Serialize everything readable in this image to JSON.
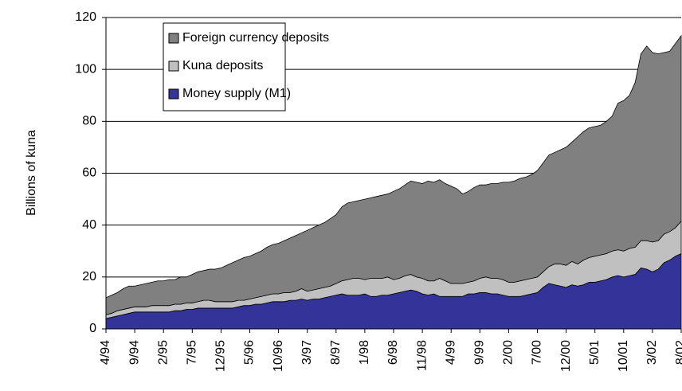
{
  "chart_data": {
    "type": "stacked-area",
    "y_label": "Billions of kuna",
    "categories": [
      "4/94",
      null,
      null,
      null,
      null,
      "9/94",
      null,
      null,
      null,
      null,
      "2/95",
      null,
      null,
      null,
      null,
      "7/95",
      null,
      null,
      null,
      null,
      "12/95",
      null,
      null,
      null,
      null,
      "5/96",
      null,
      null,
      null,
      null,
      "10/96",
      null,
      null,
      null,
      null,
      "3/97",
      null,
      null,
      null,
      null,
      "8/97",
      null,
      null,
      null,
      null,
      "1/98",
      null,
      null,
      null,
      null,
      "6/98",
      null,
      null,
      null,
      null,
      "11/98",
      null,
      null,
      null,
      null,
      "4/99",
      null,
      null,
      null,
      null,
      "9/99",
      null,
      null,
      null,
      null,
      "2/00",
      null,
      null,
      null,
      null,
      "7/00",
      null,
      null,
      null,
      null,
      "12/00",
      null,
      null,
      null,
      null,
      "5/01",
      null,
      null,
      null,
      null,
      "10/01",
      null,
      null,
      null,
      null,
      "3/02",
      null,
      null,
      null,
      null,
      "8/02"
    ],
    "series": [
      {
        "name": "Money supply (M1)",
        "color": "#333399",
        "values": [
          4,
          4.5,
          5,
          5.5,
          6,
          6.5,
          6.5,
          6.5,
          6.5,
          6.5,
          6.5,
          6.5,
          7,
          7,
          7.5,
          7.5,
          8,
          8,
          8,
          8,
          8,
          8,
          8,
          8.5,
          9,
          9,
          9.5,
          9.5,
          10,
          10.5,
          10.5,
          10.5,
          11,
          11,
          11.5,
          11,
          11.5,
          11.5,
          12,
          12.5,
          13,
          13.5,
          13,
          13,
          13,
          13.5,
          12.5,
          12.5,
          13,
          13,
          13.5,
          14,
          14.5,
          15,
          14.5,
          13.5,
          13,
          13.5,
          12.5,
          12.5,
          12.5,
          12.5,
          12.5,
          13.5,
          13.5,
          14,
          14,
          13.5,
          13.5,
          13,
          12.5,
          12.5,
          12.5,
          13,
          13.5,
          14,
          16,
          17.5,
          17,
          16.5,
          16,
          17,
          16.5,
          17,
          18,
          18,
          18.5,
          19,
          20,
          20.5,
          20,
          20.5,
          21,
          23.5,
          23,
          22,
          23,
          25.5,
          26.5,
          28,
          29
        ]
      },
      {
        "name": "Kuna deposits",
        "color": "#c0c0c0",
        "values": [
          1.5,
          1.5,
          2,
          2,
          2,
          2,
          2,
          2,
          2.5,
          2.5,
          2.5,
          2.5,
          2.5,
          2.5,
          2.5,
          2.5,
          2.5,
          3,
          3,
          2.5,
          2.5,
          2.5,
          2.5,
          2.5,
          2,
          2.5,
          2.5,
          3,
          3,
          3,
          3,
          3.5,
          3,
          3.5,
          4,
          3.5,
          3.5,
          4,
          4,
          4,
          4.5,
          5,
          6,
          6.5,
          6.5,
          5.5,
          7,
          7,
          6.5,
          7,
          5.5,
          5.5,
          6,
          6,
          5.5,
          6,
          5.5,
          5,
          7,
          6,
          5,
          5,
          5,
          4.5,
          5,
          5.5,
          6,
          6,
          6,
          6,
          5.5,
          5.5,
          6,
          6,
          6,
          6,
          6,
          6.5,
          8,
          8.5,
          8.5,
          9,
          8.5,
          9.5,
          9.5,
          10,
          10,
          10,
          10,
          10,
          10,
          10.5,
          10.5,
          10.5,
          11,
          11.5,
          11,
          11,
          11,
          11,
          12.5
        ]
      },
      {
        "name": "Foreign currency deposits",
        "color": "#808080",
        "values": [
          6.5,
          7,
          7,
          8,
          8.5,
          8,
          8.5,
          9,
          9,
          9.5,
          9.5,
          10,
          9.5,
          10.5,
          10,
          11,
          11.5,
          11.5,
          12,
          12.5,
          13,
          14,
          15,
          15.5,
          16.5,
          16.5,
          17,
          17.5,
          18.5,
          19,
          19.5,
          20,
          21,
          21.5,
          21.5,
          23.5,
          24,
          24.5,
          25,
          26,
          26.5,
          28.5,
          29.5,
          29.5,
          30,
          31,
          31,
          31.5,
          32,
          32,
          34,
          34.5,
          35,
          36,
          36.5,
          36.5,
          38.5,
          38,
          38,
          37.5,
          37.5,
          36.5,
          34.5,
          35,
          36,
          36,
          35.5,
          36.5,
          36.5,
          37.5,
          38.5,
          39,
          39.5,
          39.5,
          40,
          41,
          42,
          43,
          43,
          44,
          45.5,
          46,
          49,
          49.5,
          50,
          50,
          50,
          51,
          52,
          56.5,
          58,
          59,
          63.5,
          72,
          75,
          73,
          72,
          70,
          69.5,
          71,
          71.5
        ]
      }
    ],
    "ylim": [
      0,
      120
    ],
    "yticks": [
      0,
      20,
      40,
      60,
      80,
      100,
      120
    ],
    "grid": true
  }
}
